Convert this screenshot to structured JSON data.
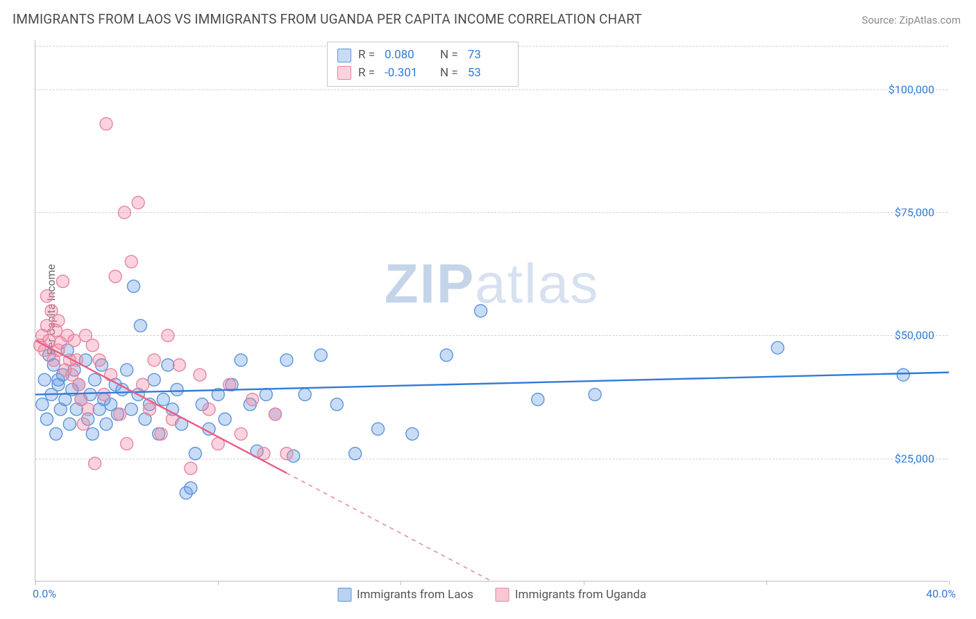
{
  "title": "IMMIGRANTS FROM LAOS VS IMMIGRANTS FROM UGANDA PER CAPITA INCOME CORRELATION CHART",
  "source_label": "Source: ZipAtlas.com",
  "ylabel": "Per Capita Income",
  "watermark_zip": "ZIP",
  "watermark_atlas": "atlas",
  "chart": {
    "type": "scatter",
    "xlim": [
      0,
      40
    ],
    "ylim": [
      0,
      110000
    ],
    "x_ticks": [
      0,
      8,
      16,
      24,
      32,
      40
    ],
    "x_tick_labels": {
      "0": "0.0%",
      "40": "40.0%"
    },
    "y_ticks": [
      25000,
      50000,
      75000,
      100000
    ],
    "y_tick_labels": [
      "$25,000",
      "$50,000",
      "$75,000",
      "$100,000"
    ],
    "grid_color": "#d6d6d6",
    "axis_color": "#bdbdbd",
    "background_color": "#ffffff",
    "marker_radius": 9,
    "marker_stroke_width": 1.4,
    "line_width": 2.4,
    "series": [
      {
        "name": "Immigrants from Laos",
        "color_fill": "rgba(100,155,225,0.35)",
        "color_stroke": "#5a94d8",
        "color_solid": "#2f7bd8",
        "R": "0.080",
        "N": "73",
        "trend": {
          "x1": 0,
          "y1": 38000,
          "x2": 40,
          "y2": 42500,
          "dash_from_x": null
        },
        "points": [
          [
            0.3,
            36000
          ],
          [
            0.4,
            41000
          ],
          [
            0.5,
            33000
          ],
          [
            0.6,
            46000
          ],
          [
            0.7,
            38000
          ],
          [
            0.8,
            44000
          ],
          [
            0.9,
            30000
          ],
          [
            1.0,
            40000
          ],
          [
            1.1,
            35000
          ],
          [
            1.2,
            42000
          ],
          [
            1.3,
            37000
          ],
          [
            1.4,
            47000
          ],
          [
            1.5,
            32000
          ],
          [
            1.6,
            39000
          ],
          [
            1.7,
            43000
          ],
          [
            1.8,
            35000
          ],
          [
            1.9,
            40000
          ],
          [
            2.0,
            37000
          ],
          [
            2.2,
            45000
          ],
          [
            2.3,
            33000
          ],
          [
            2.4,
            38000
          ],
          [
            2.5,
            30000
          ],
          [
            2.6,
            41000
          ],
          [
            2.8,
            35000
          ],
          [
            2.9,
            44000
          ],
          [
            3.0,
            37000
          ],
          [
            3.1,
            32000
          ],
          [
            3.3,
            36000
          ],
          [
            3.5,
            40000
          ],
          [
            3.6,
            34000
          ],
          [
            3.8,
            39000
          ],
          [
            4.0,
            43000
          ],
          [
            4.2,
            35000
          ],
          [
            4.3,
            60000
          ],
          [
            4.5,
            38000
          ],
          [
            4.6,
            52000
          ],
          [
            4.8,
            33000
          ],
          [
            5.0,
            36000
          ],
          [
            5.2,
            41000
          ],
          [
            5.4,
            30000
          ],
          [
            5.6,
            37000
          ],
          [
            5.8,
            44000
          ],
          [
            6.0,
            35000
          ],
          [
            6.2,
            39000
          ],
          [
            6.4,
            32000
          ],
          [
            6.6,
            18000
          ],
          [
            6.8,
            19000
          ],
          [
            7.0,
            26000
          ],
          [
            7.3,
            36000
          ],
          [
            7.6,
            31000
          ],
          [
            8.0,
            38000
          ],
          [
            8.3,
            33000
          ],
          [
            8.6,
            40000
          ],
          [
            9.0,
            45000
          ],
          [
            9.4,
            36000
          ],
          [
            9.7,
            26500
          ],
          [
            10.1,
            38000
          ],
          [
            10.5,
            34000
          ],
          [
            11.0,
            45000
          ],
          [
            11.3,
            25500
          ],
          [
            11.8,
            38000
          ],
          [
            12.5,
            46000
          ],
          [
            13.2,
            36000
          ],
          [
            14.0,
            26000
          ],
          [
            15.0,
            31000
          ],
          [
            16.5,
            30000
          ],
          [
            18.0,
            46000
          ],
          [
            19.5,
            55000
          ],
          [
            22.0,
            37000
          ],
          [
            24.5,
            38000
          ],
          [
            32.5,
            47500
          ],
          [
            38.0,
            42000
          ],
          [
            1.0,
            41000
          ]
        ]
      },
      {
        "name": "Immigrants from Uganda",
        "color_fill": "rgba(240,130,160,0.35)",
        "color_stroke": "#e6859f",
        "color_solid": "#eb5b83",
        "R": "-0.301",
        "N": "53",
        "trend": {
          "x1": 0,
          "y1": 49000,
          "x2": 20,
          "y2": 0,
          "dash_from_x": 11
        },
        "points": [
          [
            0.2,
            48000
          ],
          [
            0.3,
            50000
          ],
          [
            0.4,
            47000
          ],
          [
            0.5,
            52000
          ],
          [
            0.6,
            49000
          ],
          [
            0.7,
            55000
          ],
          [
            0.8,
            45000
          ],
          [
            0.9,
            51000
          ],
          [
            1.0,
            47000
          ],
          [
            1.1,
            48500
          ],
          [
            1.2,
            61000
          ],
          [
            1.3,
            43000
          ],
          [
            1.4,
            50000
          ],
          [
            1.5,
            45000
          ],
          [
            1.6,
            42000
          ],
          [
            1.7,
            49000
          ],
          [
            1.8,
            45000
          ],
          [
            1.9,
            40000
          ],
          [
            2.0,
            37000
          ],
          [
            2.1,
            32000
          ],
          [
            2.2,
            50000
          ],
          [
            2.3,
            35000
          ],
          [
            2.5,
            48000
          ],
          [
            2.6,
            24000
          ],
          [
            2.8,
            45000
          ],
          [
            3.0,
            38000
          ],
          [
            3.1,
            93000
          ],
          [
            3.3,
            42000
          ],
          [
            3.5,
            62000
          ],
          [
            3.7,
            34000
          ],
          [
            3.9,
            75000
          ],
          [
            4.0,
            28000
          ],
          [
            4.2,
            65000
          ],
          [
            4.5,
            77000
          ],
          [
            4.7,
            40000
          ],
          [
            5.0,
            35000
          ],
          [
            5.2,
            45000
          ],
          [
            5.5,
            30000
          ],
          [
            5.8,
            50000
          ],
          [
            6.0,
            33000
          ],
          [
            6.3,
            44000
          ],
          [
            6.8,
            23000
          ],
          [
            7.2,
            42000
          ],
          [
            7.6,
            35000
          ],
          [
            8.0,
            28000
          ],
          [
            8.5,
            40000
          ],
          [
            9.0,
            30000
          ],
          [
            9.5,
            37000
          ],
          [
            10.0,
            26000
          ],
          [
            10.5,
            34000
          ],
          [
            11.0,
            26000
          ],
          [
            0.5,
            58000
          ],
          [
            1.0,
            53000
          ]
        ]
      }
    ]
  },
  "legend_bottom": [
    {
      "label": "Immigrants from Laos",
      "fill": "rgba(100,155,225,0.45)",
      "stroke": "#5a94d8"
    },
    {
      "label": "Immigrants from Uganda",
      "fill": "rgba(240,130,160,0.45)",
      "stroke": "#e6859f"
    }
  ]
}
